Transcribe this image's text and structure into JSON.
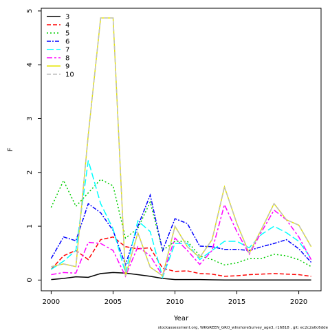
{
  "chart_data": {
    "type": "line",
    "title": "",
    "xlabel": "Year",
    "ylabel": "F",
    "xlim": [
      1999.2,
      2021.8
    ],
    "ylim": [
      -0.2,
      5.05
    ],
    "xticks": [
      2000,
      2005,
      2010,
      2015,
      2020
    ],
    "yticks": [
      0,
      1,
      2,
      3,
      4,
      5
    ],
    "grid": false,
    "legend_position": "top-left",
    "footnote": "stockassessment.org, WKGREEN_GRO_wInshoreSurvey_age3, r16818 , git: ec2c2a0c6dde",
    "x": [
      2000,
      2001,
      2002,
      2003,
      2004,
      2005,
      2006,
      2007,
      2008,
      2009,
      2010,
      2011,
      2012,
      2013,
      2014,
      2015,
      2016,
      2017,
      2018,
      2019,
      2020,
      2021
    ],
    "series": [
      {
        "name": "3",
        "color": "#000000",
        "dash": "solid",
        "values": [
          0.01,
          0.03,
          0.06,
          0.05,
          0.12,
          0.14,
          0.13,
          0.1,
          0.07,
          0.03,
          0.01,
          0.01,
          0.01,
          0.005,
          0.0,
          0.0,
          0.0,
          0.0,
          0.0,
          0.0,
          0.0,
          0.0
        ]
      },
      {
        "name": "4",
        "color": "#ff0000",
        "dash": "6,3",
        "values": [
          0.2,
          0.45,
          0.55,
          0.38,
          0.75,
          0.8,
          0.62,
          0.58,
          0.6,
          0.22,
          0.16,
          0.17,
          0.12,
          0.11,
          0.07,
          0.08,
          0.1,
          0.11,
          0.12,
          0.11,
          0.1,
          0.07
        ]
      },
      {
        "name": "5",
        "color": "#00cd00",
        "dash": "2,3",
        "values": [
          1.35,
          1.85,
          1.37,
          1.62,
          1.87,
          1.75,
          0.78,
          0.96,
          1.45,
          0.55,
          0.72,
          0.72,
          0.45,
          0.38,
          0.28,
          0.32,
          0.4,
          0.4,
          0.48,
          0.45,
          0.38,
          0.25
        ]
      },
      {
        "name": "6",
        "color": "#0000ff",
        "dash": "6,2,2,2",
        "values": [
          0.4,
          0.8,
          0.73,
          1.42,
          1.25,
          0.92,
          0.28,
          1.0,
          1.58,
          0.55,
          1.14,
          1.05,
          0.63,
          0.62,
          0.57,
          0.57,
          0.55,
          0.62,
          0.68,
          0.75,
          0.58,
          0.33
        ]
      },
      {
        "name": "7",
        "color": "#00ffff",
        "dash": "10,4",
        "values": [
          0.2,
          0.35,
          0.55,
          2.22,
          1.42,
          0.95,
          0.13,
          1.1,
          0.9,
          0.05,
          0.68,
          0.68,
          0.38,
          0.55,
          0.72,
          0.72,
          0.6,
          0.85,
          1.0,
          0.88,
          0.72,
          0.4
        ]
      },
      {
        "name": "8",
        "color": "#ff00ff",
        "dash": "8,3,3,3",
        "values": [
          0.1,
          0.14,
          0.13,
          0.7,
          0.68,
          0.55,
          0.07,
          0.62,
          0.45,
          0.08,
          0.78,
          0.55,
          0.29,
          0.55,
          1.4,
          0.9,
          0.48,
          0.9,
          1.3,
          1.12,
          0.8,
          0.38
        ]
      },
      {
        "name": "9",
        "color": "#e6e600",
        "dash": "solid",
        "values": [
          0.25,
          0.3,
          0.25,
          2.7,
          4.87,
          4.87,
          0.07,
          0.88,
          0.24,
          0.08,
          1.0,
          0.62,
          0.42,
          0.75,
          1.73,
          1.05,
          0.5,
          0.95,
          1.42,
          1.12,
          1.02,
          0.62
        ]
      },
      {
        "name": "10",
        "color": "#bebebe",
        "dash": "6,3",
        "values": [
          0.25,
          0.3,
          0.25,
          2.7,
          4.87,
          4.87,
          0.07,
          0.88,
          0.24,
          0.08,
          1.0,
          0.62,
          0.42,
          0.75,
          1.73,
          1.05,
          0.5,
          0.95,
          1.42,
          1.12,
          1.02,
          0.62
        ]
      }
    ]
  }
}
